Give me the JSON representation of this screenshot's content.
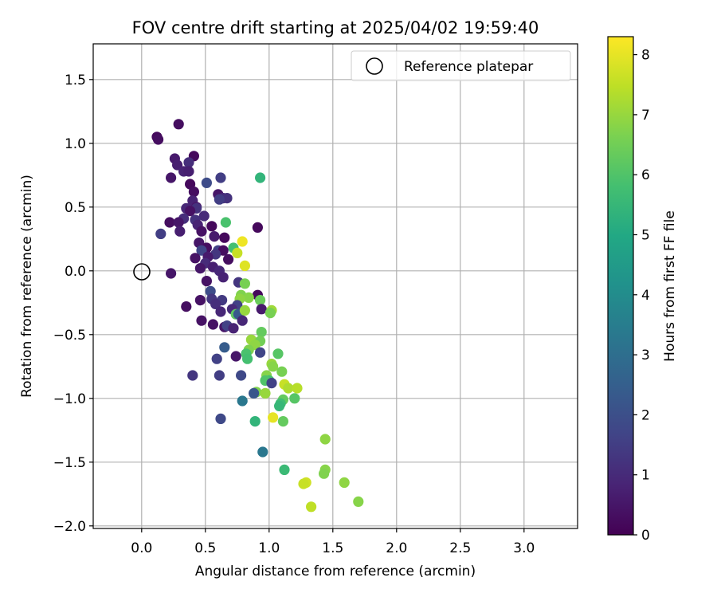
{
  "chart_data": {
    "type": "scatter",
    "title": "FOV centre drift starting at 2025/04/02 19:59:40",
    "xlabel": "Angular distance from reference (arcmin)",
    "ylabel": "Rotation from reference (arcmin)",
    "xlim": [
      -0.38,
      3.42
    ],
    "ylim": [
      -2.02,
      1.78
    ],
    "xticks": [
      0.0,
      0.5,
      1.0,
      1.5,
      2.0,
      2.5,
      3.0
    ],
    "xtick_labels": [
      "0.0",
      "0.5",
      "1.0",
      "1.5",
      "2.0",
      "2.5",
      "3.0"
    ],
    "yticks": [
      -2.0,
      -1.5,
      -1.0,
      -0.5,
      0.0,
      0.5,
      1.0,
      1.5
    ],
    "ytick_labels": [
      "−2.0",
      "−1.5",
      "−1.0",
      "−0.5",
      "0.0",
      "0.5",
      "1.0",
      "1.5"
    ],
    "grid": true,
    "legend": {
      "position": "top-right",
      "entries": [
        "Reference platepar"
      ]
    },
    "reference_point": {
      "x": 0.0,
      "y": 0.0,
      "label": "Reference platepar"
    },
    "colorbar": {
      "label": "Hours from first FF file",
      "colormap": "viridis",
      "range": [
        0,
        8.3
      ],
      "ticks": [
        0,
        1,
        2,
        3,
        4,
        5,
        6,
        7,
        8
      ],
      "tick_labels": [
        "0",
        "1",
        "2",
        "3",
        "4",
        "5",
        "6",
        "7",
        "8"
      ]
    },
    "points": [
      {
        "x": 0.29,
        "y": 1.15,
        "c": 0.3
      },
      {
        "x": 0.12,
        "y": 1.05,
        "c": 0.2
      },
      {
        "x": 0.13,
        "y": 1.03,
        "c": 0.3
      },
      {
        "x": 0.41,
        "y": 0.9,
        "c": 0.2
      },
      {
        "x": 0.26,
        "y": 0.88,
        "c": 0.6
      },
      {
        "x": 0.28,
        "y": 0.83,
        "c": 0.7
      },
      {
        "x": 0.37,
        "y": 0.85,
        "c": 1.1
      },
      {
        "x": 0.33,
        "y": 0.78,
        "c": 0.8
      },
      {
        "x": 0.37,
        "y": 0.78,
        "c": 0.7
      },
      {
        "x": 0.23,
        "y": 0.73,
        "c": 0.5
      },
      {
        "x": 0.62,
        "y": 0.73,
        "c": 1.5
      },
      {
        "x": 0.93,
        "y": 0.73,
        "c": 5.4
      },
      {
        "x": 0.51,
        "y": 0.69,
        "c": 1.9
      },
      {
        "x": 0.38,
        "y": 0.68,
        "c": 0.2
      },
      {
        "x": 0.41,
        "y": 0.62,
        "c": 0.3
      },
      {
        "x": 0.6,
        "y": 0.6,
        "c": 0.5
      },
      {
        "x": 0.64,
        "y": 0.57,
        "c": 1.0
      },
      {
        "x": 0.67,
        "y": 0.57,
        "c": 1.2
      },
      {
        "x": 0.61,
        "y": 0.56,
        "c": 1.5
      },
      {
        "x": 0.4,
        "y": 0.55,
        "c": 0.8
      },
      {
        "x": 0.43,
        "y": 0.5,
        "c": 0.5
      },
      {
        "x": 0.35,
        "y": 0.49,
        "c": 0.9
      },
      {
        "x": 0.43,
        "y": 0.49,
        "c": 1.2
      },
      {
        "x": 0.38,
        "y": 0.47,
        "c": 0.4
      },
      {
        "x": 0.49,
        "y": 0.43,
        "c": 1.0
      },
      {
        "x": 0.33,
        "y": 0.41,
        "c": 1.1
      },
      {
        "x": 0.42,
        "y": 0.4,
        "c": 1.2
      },
      {
        "x": 0.22,
        "y": 0.38,
        "c": 0.3
      },
      {
        "x": 0.29,
        "y": 0.38,
        "c": 0.5
      },
      {
        "x": 0.66,
        "y": 0.38,
        "c": 5.9
      },
      {
        "x": 0.44,
        "y": 0.36,
        "c": 0.8
      },
      {
        "x": 0.55,
        "y": 0.35,
        "c": 0.2
      },
      {
        "x": 0.91,
        "y": 0.34,
        "c": 0.2
      },
      {
        "x": 0.3,
        "y": 0.31,
        "c": 0.7
      },
      {
        "x": 0.47,
        "y": 0.31,
        "c": 0.4
      },
      {
        "x": 0.15,
        "y": 0.29,
        "c": 1.5
      },
      {
        "x": 0.57,
        "y": 0.27,
        "c": 0.6
      },
      {
        "x": 0.65,
        "y": 0.26,
        "c": 0.2
      },
      {
        "x": 0.79,
        "y": 0.23,
        "c": 8.1
      },
      {
        "x": 0.45,
        "y": 0.22,
        "c": 0.5
      },
      {
        "x": 0.51,
        "y": 0.18,
        "c": 0.3
      },
      {
        "x": 0.72,
        "y": 0.18,
        "c": 5.8
      },
      {
        "x": 0.47,
        "y": 0.16,
        "c": 1.7
      },
      {
        "x": 0.6,
        "y": 0.16,
        "c": 1.6
      },
      {
        "x": 0.64,
        "y": 0.16,
        "c": 0.3
      },
      {
        "x": 0.75,
        "y": 0.14,
        "c": 7.6
      },
      {
        "x": 0.58,
        "y": 0.13,
        "c": 1.3
      },
      {
        "x": 0.52,
        "y": 0.11,
        "c": 0.6
      },
      {
        "x": 0.42,
        "y": 0.1,
        "c": 0.4
      },
      {
        "x": 0.68,
        "y": 0.09,
        "c": 0.3
      },
      {
        "x": 0.81,
        "y": 0.04,
        "c": 7.9
      },
      {
        "x": 0.5,
        "y": 0.06,
        "c": 1.0
      },
      {
        "x": 0.56,
        "y": 0.03,
        "c": 0.7
      },
      {
        "x": 0.46,
        "y": 0.02,
        "c": 0.5
      },
      {
        "x": 0.61,
        "y": 0.0,
        "c": 0.9
      },
      {
        "x": 0.23,
        "y": -0.02,
        "c": 0.5
      },
      {
        "x": 0.64,
        "y": -0.05,
        "c": 0.8
      },
      {
        "x": 0.51,
        "y": -0.08,
        "c": 0.4
      },
      {
        "x": 0.76,
        "y": -0.09,
        "c": 1.3
      },
      {
        "x": 0.81,
        "y": -0.1,
        "c": 6.6
      },
      {
        "x": 0.54,
        "y": -0.16,
        "c": 1.9
      },
      {
        "x": 0.91,
        "y": -0.19,
        "c": 0.2
      },
      {
        "x": 0.78,
        "y": -0.19,
        "c": 6.7
      },
      {
        "x": 0.84,
        "y": -0.21,
        "c": 6.8
      },
      {
        "x": 0.77,
        "y": -0.22,
        "c": 6.9
      },
      {
        "x": 0.46,
        "y": -0.23,
        "c": 0.4
      },
      {
        "x": 0.55,
        "y": -0.22,
        "c": 1.3
      },
      {
        "x": 0.63,
        "y": -0.23,
        "c": 1.4
      },
      {
        "x": 0.93,
        "y": -0.23,
        "c": 6.4
      },
      {
        "x": 0.58,
        "y": -0.26,
        "c": 1.1
      },
      {
        "x": 0.75,
        "y": -0.27,
        "c": 1.6
      },
      {
        "x": 0.35,
        "y": -0.28,
        "c": 0.3
      },
      {
        "x": 0.71,
        "y": -0.3,
        "c": 1.0
      },
      {
        "x": 0.94,
        "y": -0.3,
        "c": 0.6
      },
      {
        "x": 1.02,
        "y": -0.31,
        "c": 7.1
      },
      {
        "x": 1.01,
        "y": -0.33,
        "c": 6.6
      },
      {
        "x": 0.62,
        "y": -0.32,
        "c": 0.9
      },
      {
        "x": 0.74,
        "y": -0.34,
        "c": 6.2
      },
      {
        "x": 0.76,
        "y": -0.34,
        "c": 2.3
      },
      {
        "x": 0.81,
        "y": -0.31,
        "c": 7.0
      },
      {
        "x": 0.47,
        "y": -0.39,
        "c": 0.4
      },
      {
        "x": 0.79,
        "y": -0.39,
        "c": 0.9
      },
      {
        "x": 0.56,
        "y": -0.42,
        "c": 0.4
      },
      {
        "x": 0.65,
        "y": -0.44,
        "c": 0.5
      },
      {
        "x": 0.67,
        "y": -0.43,
        "c": 1.6
      },
      {
        "x": 0.72,
        "y": -0.45,
        "c": 0.8
      },
      {
        "x": 0.94,
        "y": -0.48,
        "c": 6.3
      },
      {
        "x": 0.86,
        "y": -0.54,
        "c": 7.0
      },
      {
        "x": 0.93,
        "y": -0.55,
        "c": 6.5
      },
      {
        "x": 0.89,
        "y": -0.58,
        "c": 6.9
      },
      {
        "x": 0.65,
        "y": -0.6,
        "c": 2.4
      },
      {
        "x": 0.84,
        "y": -0.62,
        "c": 6.7
      },
      {
        "x": 0.82,
        "y": -0.65,
        "c": 5.9
      },
      {
        "x": 0.93,
        "y": -0.64,
        "c": 1.7
      },
      {
        "x": 1.07,
        "y": -0.65,
        "c": 6.1
      },
      {
        "x": 0.74,
        "y": -0.67,
        "c": 0.5
      },
      {
        "x": 0.83,
        "y": -0.69,
        "c": 5.8
      },
      {
        "x": 0.59,
        "y": -0.69,
        "c": 1.6
      },
      {
        "x": 1.02,
        "y": -0.73,
        "c": 7.0
      },
      {
        "x": 1.03,
        "y": -0.75,
        "c": 6.8
      },
      {
        "x": 1.1,
        "y": -0.79,
        "c": 6.6
      },
      {
        "x": 0.4,
        "y": -0.82,
        "c": 1.3
      },
      {
        "x": 0.61,
        "y": -0.82,
        "c": 1.5
      },
      {
        "x": 0.78,
        "y": -0.82,
        "c": 1.8
      },
      {
        "x": 0.98,
        "y": -0.82,
        "c": 6.8
      },
      {
        "x": 1.0,
        "y": -0.86,
        "c": 5.8
      },
      {
        "x": 0.97,
        "y": -0.86,
        "c": 6.0
      },
      {
        "x": 1.02,
        "y": -0.88,
        "c": 1.6
      },
      {
        "x": 1.12,
        "y": -0.89,
        "c": 7.6
      },
      {
        "x": 1.15,
        "y": -0.92,
        "c": 7.3
      },
      {
        "x": 1.22,
        "y": -0.92,
        "c": 7.4
      },
      {
        "x": 0.9,
        "y": -0.95,
        "c": 6.7
      },
      {
        "x": 0.97,
        "y": -0.96,
        "c": 7.0
      },
      {
        "x": 0.88,
        "y": -0.96,
        "c": 2.2
      },
      {
        "x": 1.11,
        "y": -1.01,
        "c": 6.3
      },
      {
        "x": 1.2,
        "y": -1.0,
        "c": 6.1
      },
      {
        "x": 0.79,
        "y": -1.02,
        "c": 3.3
      },
      {
        "x": 1.09,
        "y": -1.04,
        "c": 5.7
      },
      {
        "x": 1.08,
        "y": -1.06,
        "c": 5.5
      },
      {
        "x": 1.03,
        "y": -1.15,
        "c": 8.0
      },
      {
        "x": 0.62,
        "y": -1.16,
        "c": 1.8
      },
      {
        "x": 0.89,
        "y": -1.18,
        "c": 5.4
      },
      {
        "x": 1.11,
        "y": -1.18,
        "c": 6.3
      },
      {
        "x": 0.95,
        "y": -1.42,
        "c": 3.3
      },
      {
        "x": 1.12,
        "y": -1.56,
        "c": 5.6
      },
      {
        "x": 1.44,
        "y": -1.32,
        "c": 6.9
      },
      {
        "x": 1.44,
        "y": -1.56,
        "c": 6.8
      },
      {
        "x": 1.43,
        "y": -1.59,
        "c": 6.7
      },
      {
        "x": 1.29,
        "y": -1.66,
        "c": 7.7
      },
      {
        "x": 1.27,
        "y": -1.67,
        "c": 7.6
      },
      {
        "x": 1.59,
        "y": -1.66,
        "c": 6.9
      },
      {
        "x": 1.33,
        "y": -1.85,
        "c": 7.5
      },
      {
        "x": 1.7,
        "y": -1.81,
        "c": 6.8
      }
    ]
  }
}
